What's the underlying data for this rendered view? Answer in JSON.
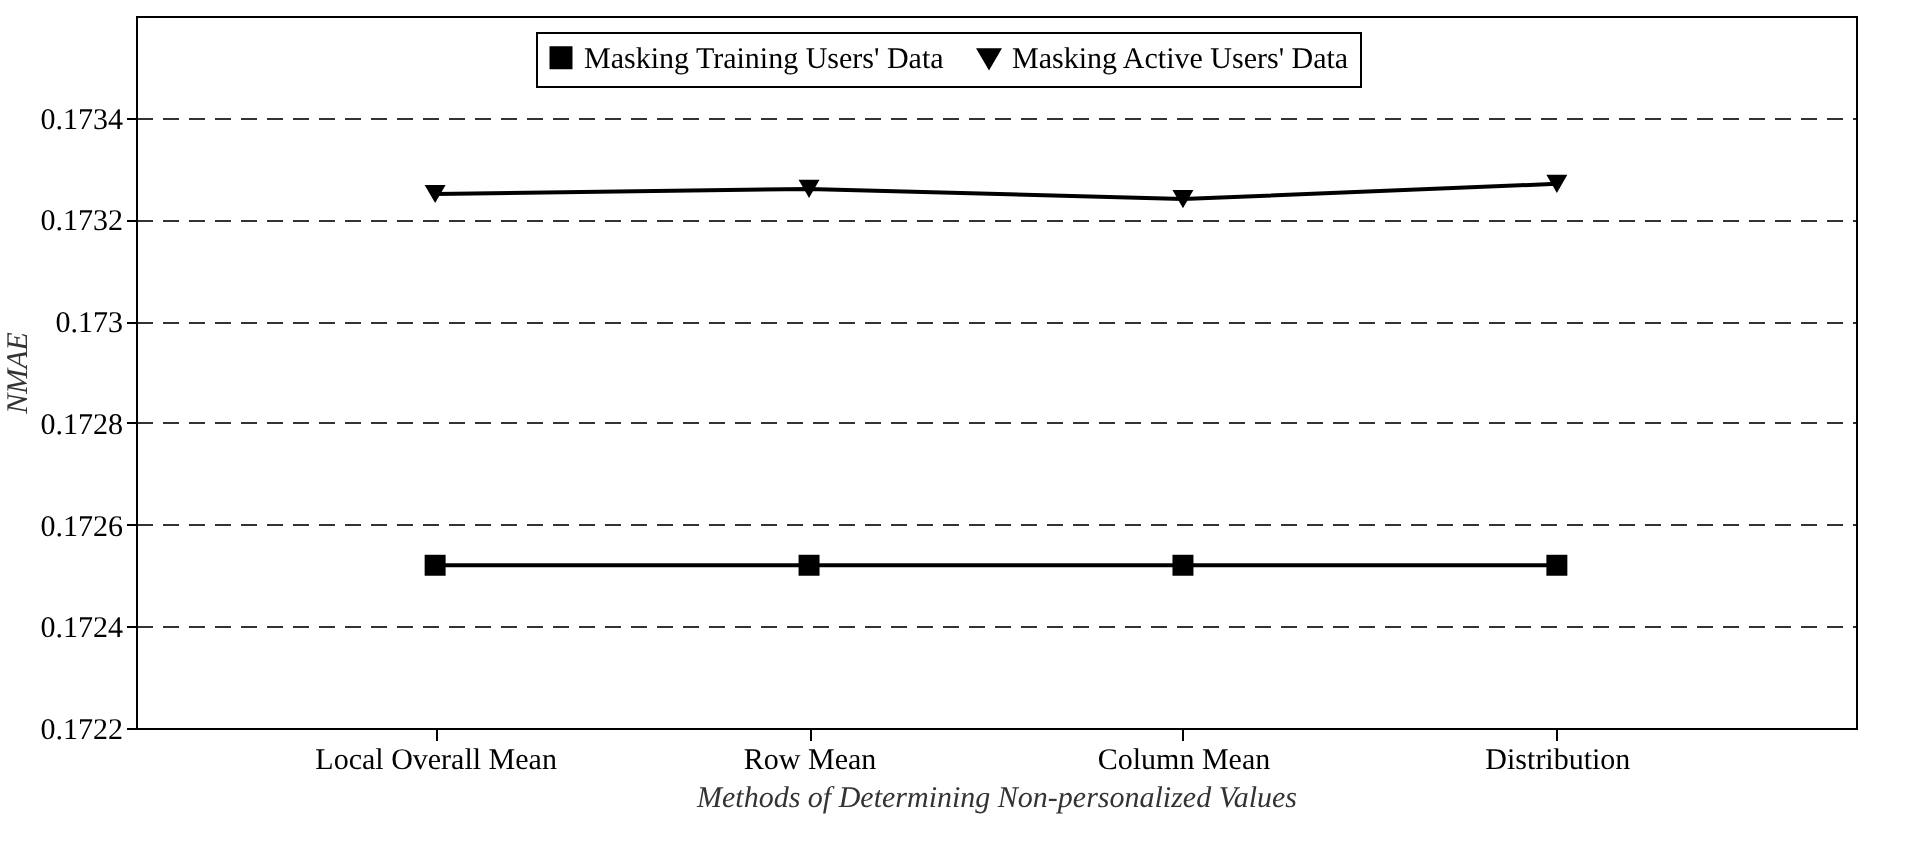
{
  "chart_data": {
    "type": "line",
    "xlabel": "Methods of Determining Non-personalized Values",
    "ylabel": "NMAE",
    "categories": [
      "Local Overall Mean",
      "Row Mean",
      "Column Mean",
      "Distribution"
    ],
    "series": [
      {
        "name": "Masking Training Users' Data",
        "color": "#000000",
        "marker": "square",
        "values": [
          0.17252,
          0.17252,
          0.17252,
          0.17252
        ]
      },
      {
        "name": "Masking Active Users' Data",
        "color": "#000000",
        "marker": "triangle",
        "values": [
          0.17325,
          0.17326,
          0.17324,
          0.17327
        ]
      }
    ],
    "ylim": [
      0.1722,
      0.1736
    ],
    "yticks": [
      0.1722,
      0.1724,
      0.1726,
      0.1728,
      0.173,
      0.1732,
      0.1734
    ],
    "grid": "y",
    "legend": "top",
    "line_style": "solid"
  }
}
